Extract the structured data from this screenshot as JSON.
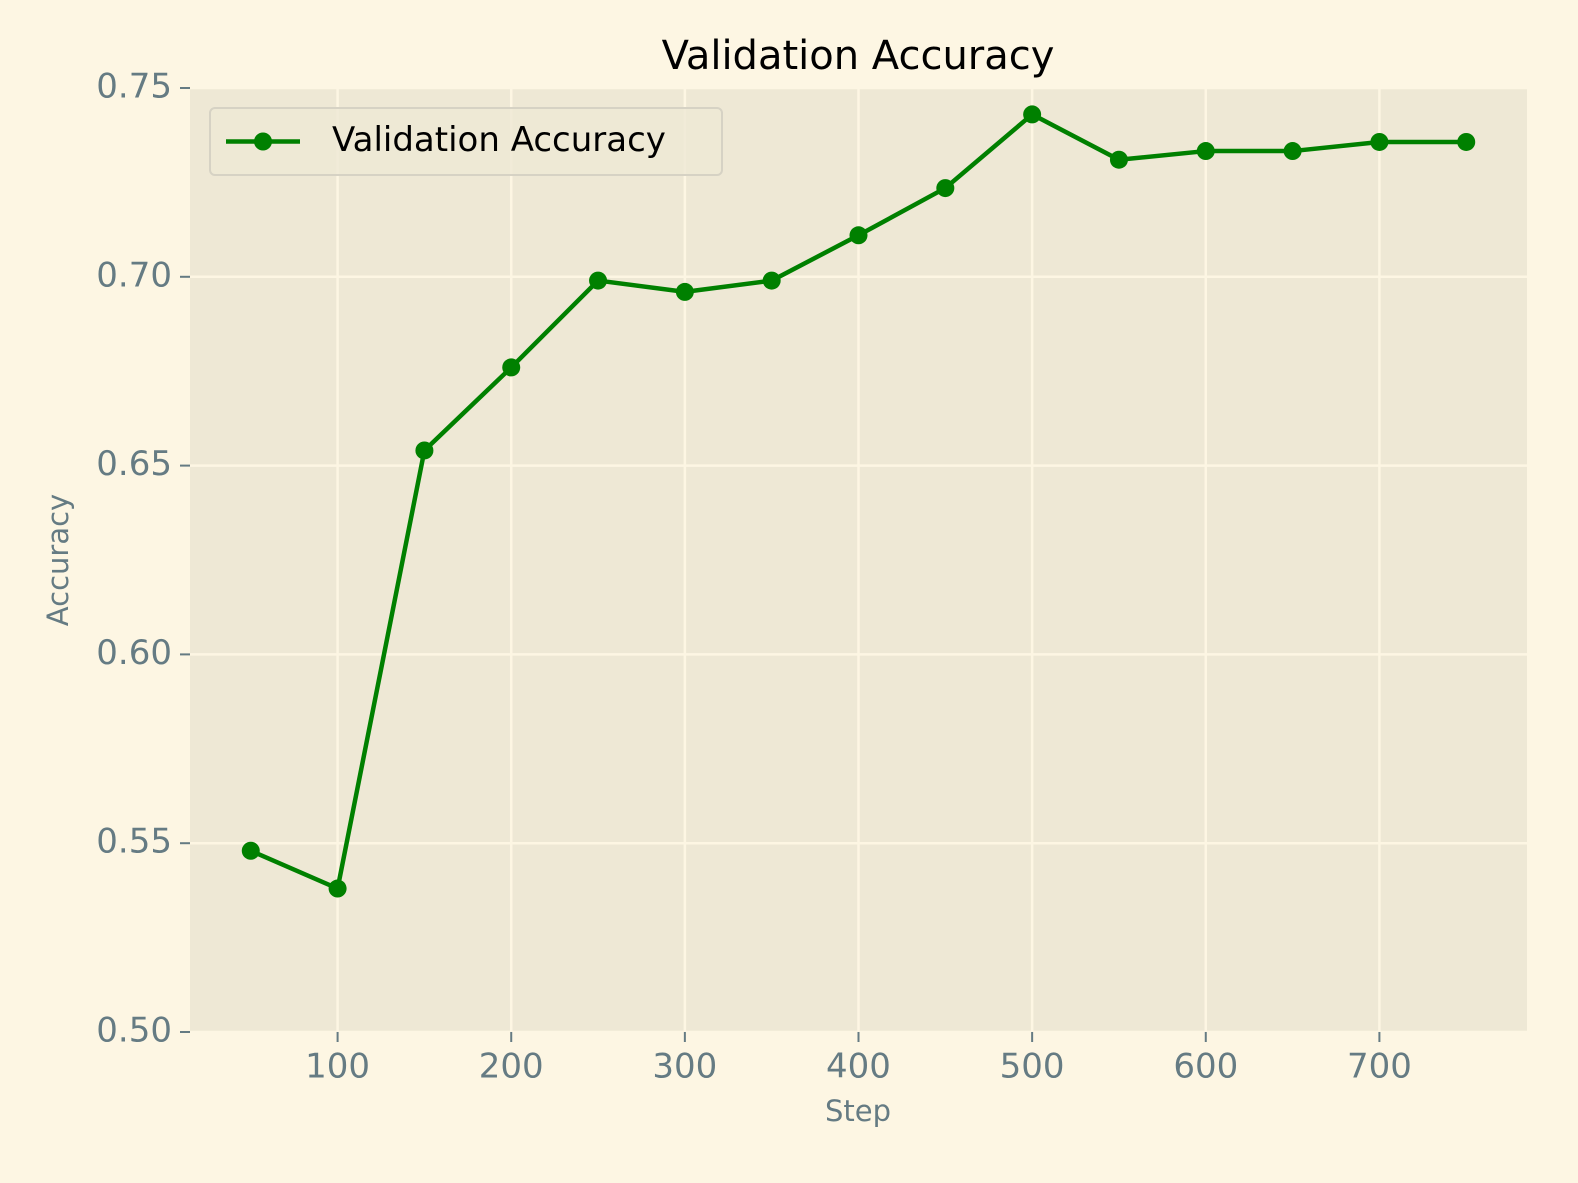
{
  "chart_data": {
    "type": "line",
    "title": "Validation Accuracy",
    "x_label": "Step",
    "y_label": "Accuracy",
    "x": [
      50,
      100,
      150,
      200,
      250,
      300,
      350,
      400,
      450,
      500,
      550,
      600,
      650,
      700,
      750
    ],
    "series": [
      {
        "name": "Validation Accuracy",
        "color": "#008000",
        "values": [
          0.548,
          0.538,
          0.654,
          0.676,
          0.699,
          0.696,
          0.699,
          0.711,
          0.7235,
          0.743,
          0.731,
          0.7333,
          0.7333,
          0.7357,
          0.7357
        ]
      }
    ],
    "xlim": [
      15,
      785
    ],
    "xticks": [
      100,
      200,
      300,
      400,
      500,
      600,
      700
    ],
    "ylim": [
      0.5,
      0.75
    ],
    "yticks": [
      {
        "value": 0.5,
        "label": "0.50"
      },
      0.55,
      {
        "value": 0.6,
        "label": "0.60"
      },
      0.65,
      {
        "value": 0.7,
        "label": "0.70"
      },
      0.75
    ],
    "grid": true,
    "legend": "upper left"
  }
}
